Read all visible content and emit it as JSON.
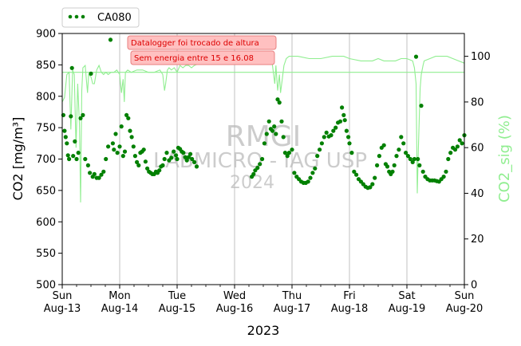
{
  "chart_data": {
    "type": "scatter",
    "title": "",
    "xlabel": "2023",
    "ylabel": "CO2 [mg/m³]",
    "ylabel_right": "CO2_sig (%)",
    "ylim": [
      500,
      900
    ],
    "ylim_right": [
      0,
      110
    ],
    "yticks": [
      500,
      550,
      600,
      650,
      700,
      750,
      800,
      850,
      900
    ],
    "yticks_right": [
      0,
      20,
      40,
      60,
      80,
      100
    ],
    "xlim": [
      "2023-08-13",
      "2023-08-20"
    ],
    "xticks": [
      {
        "date": "2023-08-13",
        "day": "Sun",
        "date_label": "Aug-13"
      },
      {
        "date": "2023-08-14",
        "day": "Mon",
        "date_label": "Aug-14"
      },
      {
        "date": "2023-08-15",
        "day": "Tue",
        "date_label": "Aug-15"
      },
      {
        "date": "2023-08-16",
        "day": "Wed",
        "date_label": "Aug-16"
      },
      {
        "date": "2023-08-17",
        "day": "Thu",
        "date_label": "Aug-17"
      },
      {
        "date": "2023-08-18",
        "day": "Fri",
        "date_label": "Aug-18"
      },
      {
        "date": "2023-08-19",
        "day": "Sat",
        "date_label": "Aug-19"
      },
      {
        "date": "2023-08-20",
        "day": "Sun",
        "date_label": "Aug-20"
      }
    ],
    "grid": "vertical",
    "legend": {
      "position": "top-left",
      "entries": [
        "CA080"
      ]
    },
    "annotations": [
      "Datalogger foi trocado de altura",
      "Sem energia entre 15 e 16.08"
    ],
    "watermark": [
      "RMGI",
      "LABMICRO - IAG USP",
      "2024"
    ],
    "colors": {
      "co2": "#008000",
      "signal": "#90ee90",
      "note_text": "#dd0000",
      "note_fill": "#ffc0c0",
      "note_border": "#e88080",
      "grid": "#c0c0c0"
    },
    "series": [
      {
        "name": "CA080",
        "axis": "left",
        "x_unit": "days since 2023-08-13 00:00",
        "points": [
          [
            0.02,
            770
          ],
          [
            0.04,
            745
          ],
          [
            0.06,
            735
          ],
          [
            0.08,
            725
          ],
          [
            0.1,
            706
          ],
          [
            0.12,
            700
          ],
          [
            0.15,
            768
          ],
          [
            0.17,
            845
          ],
          [
            0.19,
            705
          ],
          [
            0.22,
            728
          ],
          [
            0.25,
            700
          ],
          [
            0.28,
            710
          ],
          [
            0.32,
            765
          ],
          [
            0.36,
            770
          ],
          [
            0.4,
            700
          ],
          [
            0.45,
            690
          ],
          [
            0.48,
            678
          ],
          [
            0.5,
            836
          ],
          [
            0.53,
            672
          ],
          [
            0.56,
            676
          ],
          [
            0.6,
            670
          ],
          [
            0.64,
            670
          ],
          [
            0.68,
            675
          ],
          [
            0.72,
            680
          ],
          [
            0.76,
            700
          ],
          [
            0.8,
            720
          ],
          [
            0.84,
            890
          ],
          [
            0.88,
            725
          ],
          [
            0.9,
            715
          ],
          [
            0.93,
            740
          ],
          [
            0.96,
            710
          ],
          [
            1.0,
            720
          ],
          [
            1.03,
            752
          ],
          [
            1.06,
            705
          ],
          [
            1.09,
            712
          ],
          [
            1.12,
            770
          ],
          [
            1.15,
            765
          ],
          [
            1.18,
            745
          ],
          [
            1.21,
            735
          ],
          [
            1.24,
            720
          ],
          [
            1.27,
            705
          ],
          [
            1.3,
            695
          ],
          [
            1.33,
            690
          ],
          [
            1.36,
            710
          ],
          [
            1.39,
            712
          ],
          [
            1.42,
            715
          ],
          [
            1.45,
            696
          ],
          [
            1.48,
            685
          ],
          [
            1.51,
            680
          ],
          [
            1.54,
            678
          ],
          [
            1.57,
            676
          ],
          [
            1.6,
            676
          ],
          [
            1.63,
            680
          ],
          [
            1.66,
            678
          ],
          [
            1.69,
            682
          ],
          [
            1.72,
            688
          ],
          [
            1.75,
            690
          ],
          [
            1.78,
            700
          ],
          [
            1.82,
            710
          ],
          [
            1.86,
            698
          ],
          [
            1.9,
            702
          ],
          [
            1.94,
            712
          ],
          [
            1.98,
            706
          ],
          [
            2.0,
            700
          ],
          [
            2.02,
            718
          ],
          [
            2.05,
            716
          ],
          [
            2.08,
            712
          ],
          [
            2.11,
            710
          ],
          [
            2.14,
            703
          ],
          [
            2.17,
            698
          ],
          [
            2.2,
            703
          ],
          [
            2.23,
            708
          ],
          [
            2.26,
            700
          ],
          [
            2.3,
            695
          ],
          [
            2.34,
            688
          ],
          [
            3.3,
            672
          ],
          [
            3.33,
            676
          ],
          [
            3.36,
            682
          ],
          [
            3.4,
            686
          ],
          [
            3.44,
            692
          ],
          [
            3.48,
            700
          ],
          [
            3.52,
            725
          ],
          [
            3.56,
            740
          ],
          [
            3.6,
            760
          ],
          [
            3.63,
            748
          ],
          [
            3.66,
            745
          ],
          [
            3.69,
            752
          ],
          [
            3.72,
            740
          ],
          [
            3.75,
            795
          ],
          [
            3.78,
            790
          ],
          [
            3.82,
            760
          ],
          [
            3.85,
            735
          ],
          [
            3.88,
            710
          ],
          [
            3.92,
            705
          ],
          [
            3.95,
            710
          ],
          [
            4.0,
            715
          ],
          [
            4.04,
            678
          ],
          [
            4.08,
            672
          ],
          [
            4.12,
            668
          ],
          [
            4.16,
            664
          ],
          [
            4.2,
            662
          ],
          [
            4.24,
            662
          ],
          [
            4.28,
            664
          ],
          [
            4.32,
            670
          ],
          [
            4.36,
            678
          ],
          [
            4.4,
            685
          ],
          [
            4.44,
            705
          ],
          [
            4.48,
            715
          ],
          [
            4.52,
            725
          ],
          [
            4.56,
            735
          ],
          [
            4.6,
            742
          ],
          [
            4.64,
            736
          ],
          [
            4.68,
            738
          ],
          [
            4.72,
            745
          ],
          [
            4.76,
            750
          ],
          [
            4.8,
            758
          ],
          [
            4.84,
            760
          ],
          [
            4.87,
            782
          ],
          [
            4.9,
            770
          ],
          [
            4.92,
            762
          ],
          [
            4.95,
            745
          ],
          [
            4.98,
            735
          ],
          [
            5.0,
            725
          ],
          [
            5.04,
            710
          ],
          [
            5.08,
            680
          ],
          [
            5.12,
            675
          ],
          [
            5.16,
            668
          ],
          [
            5.2,
            664
          ],
          [
            5.24,
            660
          ],
          [
            5.28,
            656
          ],
          [
            5.32,
            654
          ],
          [
            5.36,
            655
          ],
          [
            5.4,
            660
          ],
          [
            5.44,
            670
          ],
          [
            5.48,
            690
          ],
          [
            5.52,
            705
          ],
          [
            5.56,
            718
          ],
          [
            5.6,
            722
          ],
          [
            5.63,
            692
          ],
          [
            5.66,
            688
          ],
          [
            5.69,
            680
          ],
          [
            5.72,
            676
          ],
          [
            5.75,
            680
          ],
          [
            5.78,
            690
          ],
          [
            5.82,
            705
          ],
          [
            5.86,
            715
          ],
          [
            5.9,
            735
          ],
          [
            5.94,
            725
          ],
          [
            5.98,
            710
          ],
          [
            6.02,
            705
          ],
          [
            6.06,
            700
          ],
          [
            6.1,
            695
          ],
          [
            6.13,
            700
          ],
          [
            6.16,
            863
          ],
          [
            6.19,
            700
          ],
          [
            6.22,
            690
          ],
          [
            6.25,
            785
          ],
          [
            6.28,
            680
          ],
          [
            6.32,
            672
          ],
          [
            6.36,
            668
          ],
          [
            6.4,
            666
          ],
          [
            6.44,
            666
          ],
          [
            6.48,
            666
          ],
          [
            6.52,
            665
          ],
          [
            6.56,
            664
          ],
          [
            6.6,
            668
          ],
          [
            6.64,
            672
          ],
          [
            6.68,
            680
          ],
          [
            6.72,
            700
          ],
          [
            6.76,
            710
          ],
          [
            6.8,
            718
          ],
          [
            6.84,
            715
          ],
          [
            6.88,
            720
          ],
          [
            6.92,
            730
          ],
          [
            6.96,
            725
          ],
          [
            7.0,
            738
          ]
        ]
      },
      {
        "name": "CO2_sig (%)",
        "axis": "right",
        "x_unit": "days since 2023-08-13 00:00",
        "points": [
          [
            0.0,
            80
          ],
          [
            0.04,
            82
          ],
          [
            0.08,
            92
          ],
          [
            0.12,
            93
          ],
          [
            0.15,
            68
          ],
          [
            0.18,
            94
          ],
          [
            0.21,
            92
          ],
          [
            0.24,
            60
          ],
          [
            0.27,
            88
          ],
          [
            0.3,
            70
          ],
          [
            0.32,
            36
          ],
          [
            0.34,
            85
          ],
          [
            0.36,
            95
          ],
          [
            0.4,
            96
          ],
          [
            0.42,
            90
          ],
          [
            0.44,
            84
          ],
          [
            0.46,
            92
          ],
          [
            0.5,
            91
          ],
          [
            0.53,
            88
          ],
          [
            0.56,
            88
          ],
          [
            0.6,
            94
          ],
          [
            0.64,
            96
          ],
          [
            0.68,
            93
          ],
          [
            0.72,
            92
          ],
          [
            0.76,
            93
          ],
          [
            0.8,
            92
          ],
          [
            0.85,
            93
          ],
          [
            0.9,
            93
          ],
          [
            0.95,
            94
          ],
          [
            1.0,
            92
          ],
          [
            1.03,
            84
          ],
          [
            1.06,
            90
          ],
          [
            1.08,
            80
          ],
          [
            1.1,
            93
          ],
          [
            1.14,
            94
          ],
          [
            1.2,
            93
          ],
          [
            1.3,
            94
          ],
          [
            1.4,
            94
          ],
          [
            1.5,
            93
          ],
          [
            1.6,
            93
          ],
          [
            1.7,
            94
          ],
          [
            1.75,
            92
          ],
          [
            1.78,
            85
          ],
          [
            1.8,
            88
          ],
          [
            1.83,
            94
          ],
          [
            1.86,
            95
          ],
          [
            1.9,
            94
          ],
          [
            1.95,
            95
          ],
          [
            2.0,
            93
          ],
          [
            2.05,
            96
          ],
          [
            2.1,
            95
          ],
          [
            2.15,
            96
          ],
          [
            2.2,
            96
          ],
          [
            2.25,
            95
          ],
          [
            2.3,
            96
          ],
          [
            2.4,
            97
          ],
          [
            2.6,
            97
          ],
          [
            2.8,
            98
          ],
          [
            3.0,
            98
          ],
          [
            3.2,
            98
          ],
          [
            3.4,
            99
          ],
          [
            3.5,
            100
          ],
          [
            3.6,
            99
          ],
          [
            3.65,
            98
          ],
          [
            3.7,
            88
          ],
          [
            3.72,
            96
          ],
          [
            3.75,
            85
          ],
          [
            3.78,
            92
          ],
          [
            3.8,
            84
          ],
          [
            3.83,
            90
          ],
          [
            3.86,
            96
          ],
          [
            3.9,
            99
          ],
          [
            3.95,
            100
          ],
          [
            4.0,
            100
          ],
          [
            4.1,
            100
          ],
          [
            4.3,
            99
          ],
          [
            4.5,
            99
          ],
          [
            4.7,
            100
          ],
          [
            4.9,
            100
          ],
          [
            5.0,
            99
          ],
          [
            5.2,
            98
          ],
          [
            5.4,
            98
          ],
          [
            5.5,
            99
          ],
          [
            5.6,
            98
          ],
          [
            5.7,
            98
          ],
          [
            5.8,
            98
          ],
          [
            5.9,
            99
          ],
          [
            6.0,
            99
          ],
          [
            6.1,
            98
          ],
          [
            6.13,
            95
          ],
          [
            6.16,
            88
          ],
          [
            6.18,
            40
          ],
          [
            6.2,
            60
          ],
          [
            6.23,
            86
          ],
          [
            6.25,
            92
          ],
          [
            6.28,
            96
          ],
          [
            6.3,
            98
          ],
          [
            6.4,
            99
          ],
          [
            6.5,
            100
          ],
          [
            6.6,
            100
          ],
          [
            6.7,
            100
          ],
          [
            6.8,
            99
          ],
          [
            6.9,
            98
          ],
          [
            7.0,
            97
          ]
        ]
      },
      {
        "name": "",
        "axis": "right",
        "x_unit": "days since 2023-08-13 00:00",
        "points": [
          [
            0.0,
            93
          ],
          [
            7.0,
            93
          ]
        ]
      }
    ]
  }
}
